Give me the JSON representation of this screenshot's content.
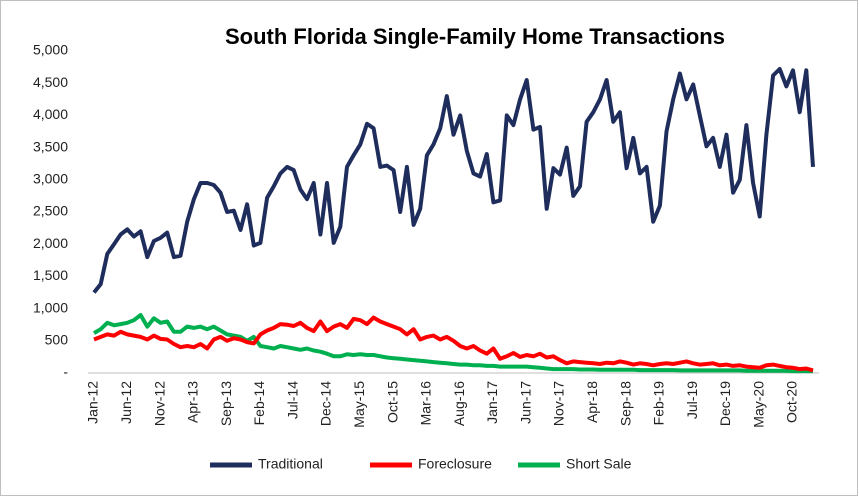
{
  "chart_data": {
    "type": "line",
    "title": "South Florida Single-Family Home Transactions",
    "categories": [
      "Jan-12",
      null,
      null,
      null,
      null,
      "Jun-12",
      null,
      null,
      null,
      null,
      "Nov-12",
      null,
      null,
      null,
      null,
      "Apr-13",
      null,
      null,
      null,
      null,
      "Sep-13",
      null,
      null,
      null,
      null,
      "Feb-14",
      null,
      null,
      null,
      null,
      "Jul-14",
      null,
      null,
      null,
      null,
      "Dec-14",
      null,
      null,
      null,
      null,
      "May-15",
      null,
      null,
      null,
      null,
      "Oct-15",
      null,
      null,
      null,
      null,
      "Mar-16",
      null,
      null,
      null,
      null,
      "Aug-16",
      null,
      null,
      null,
      null,
      "Jan-17",
      null,
      null,
      null,
      null,
      "Jun-17",
      null,
      null,
      null,
      null,
      "Nov-17",
      null,
      null,
      null,
      null,
      "Apr-18",
      null,
      null,
      null,
      null,
      "Sep-18",
      null,
      null,
      null,
      null,
      "Feb-19",
      null,
      null,
      null,
      null,
      "Jul-19",
      null,
      null,
      null,
      null,
      "Dec-19",
      null,
      null,
      null,
      null,
      "May-20",
      null,
      null,
      null,
      null,
      "Oct-20",
      null,
      null,
      null
    ],
    "series": [
      {
        "name": "Traditional",
        "color": "#1f2d5c",
        "values": [
          1250,
          1380,
          1850,
          2000,
          2150,
          2230,
          2120,
          2200,
          1800,
          2050,
          2100,
          2180,
          1800,
          1820,
          2350,
          2700,
          2950,
          2950,
          2920,
          2800,
          2500,
          2520,
          2220,
          2620,
          1980,
          2020,
          2720,
          2900,
          3100,
          3200,
          3150,
          2850,
          2700,
          2950,
          2150,
          2950,
          2020,
          2270,
          3200,
          3380,
          3550,
          3870,
          3800,
          3200,
          3220,
          3150,
          2500,
          3200,
          2300,
          2550,
          3380,
          3550,
          3800,
          4300,
          3700,
          4000,
          3450,
          3100,
          3050,
          3400,
          2650,
          2680,
          4000,
          3850,
          4250,
          4550,
          3780,
          3820,
          2550,
          3180,
          3080,
          3500,
          2750,
          2900,
          3900,
          4050,
          4250,
          4550,
          3900,
          4050,
          3180,
          3650,
          3100,
          3200,
          2350,
          2600,
          3750,
          4250,
          4650,
          4250,
          4480,
          4000,
          3520,
          3650,
          3200,
          3700,
          2800,
          3000,
          3850,
          2950,
          2430,
          3700,
          4620,
          4720,
          4450,
          4700,
          4050,
          4700,
          3200
        ]
      },
      {
        "name": "Foreclosure",
        "color": "#ff0000",
        "values": [
          520,
          560,
          600,
          580,
          640,
          600,
          580,
          560,
          520,
          580,
          530,
          520,
          450,
          400,
          420,
          400,
          450,
          380,
          520,
          560,
          500,
          540,
          520,
          480,
          460,
          600,
          660,
          700,
          760,
          750,
          730,
          780,
          700,
          650,
          800,
          650,
          720,
          760,
          700,
          840,
          820,
          760,
          860,
          800,
          760,
          720,
          680,
          600,
          680,
          520,
          560,
          580,
          520,
          560,
          500,
          420,
          380,
          420,
          350,
          300,
          380,
          220,
          260,
          310,
          250,
          280,
          260,
          300,
          240,
          260,
          200,
          150,
          180,
          170,
          160,
          150,
          140,
          160,
          150,
          180,
          160,
          130,
          150,
          140,
          120,
          140,
          150,
          140,
          160,
          180,
          150,
          130,
          140,
          150,
          120,
          130,
          110,
          120,
          100,
          90,
          80,
          120,
          130,
          110,
          90,
          80,
          60,
          70,
          40
        ]
      },
      {
        "name": "Short Sale",
        "color": "#00b050",
        "values": [
          620,
          680,
          780,
          740,
          760,
          780,
          820,
          900,
          720,
          850,
          780,
          800,
          640,
          640,
          720,
          700,
          720,
          680,
          720,
          660,
          600,
          580,
          560,
          500,
          560,
          420,
          400,
          380,
          420,
          400,
          380,
          360,
          380,
          350,
          330,
          300,
          260,
          260,
          290,
          280,
          290,
          280,
          280,
          260,
          240,
          230,
          220,
          210,
          200,
          190,
          180,
          170,
          160,
          150,
          140,
          130,
          130,
          120,
          120,
          110,
          110,
          100,
          100,
          100,
          100,
          100,
          90,
          80,
          70,
          60,
          60,
          60,
          60,
          55,
          55,
          55,
          50,
          50,
          50,
          50,
          50,
          50,
          45,
          45,
          45,
          45,
          45,
          45,
          40,
          40,
          40,
          40,
          40,
          40,
          40,
          40,
          40,
          40,
          35,
          35,
          35,
          35,
          35,
          35,
          35,
          30,
          30,
          30,
          30
        ]
      }
    ],
    "ylim": [
      0,
      5000
    ],
    "yticks": [
      {
        "value": 0,
        "label": "-"
      },
      {
        "value": 500,
        "label": "500"
      },
      {
        "value": 1000,
        "label": "1,000"
      },
      {
        "value": 1500,
        "label": "1,500"
      },
      {
        "value": 2000,
        "label": "2,000"
      },
      {
        "value": 2500,
        "label": "2,500"
      },
      {
        "value": 3000,
        "label": "3,000"
      },
      {
        "value": 3500,
        "label": "3,500"
      },
      {
        "value": 4000,
        "label": "4,000"
      },
      {
        "value": 4500,
        "label": "4,500"
      },
      {
        "value": 5000,
        "label": "5,000"
      }
    ],
    "legend": "bottom",
    "grid": false
  }
}
